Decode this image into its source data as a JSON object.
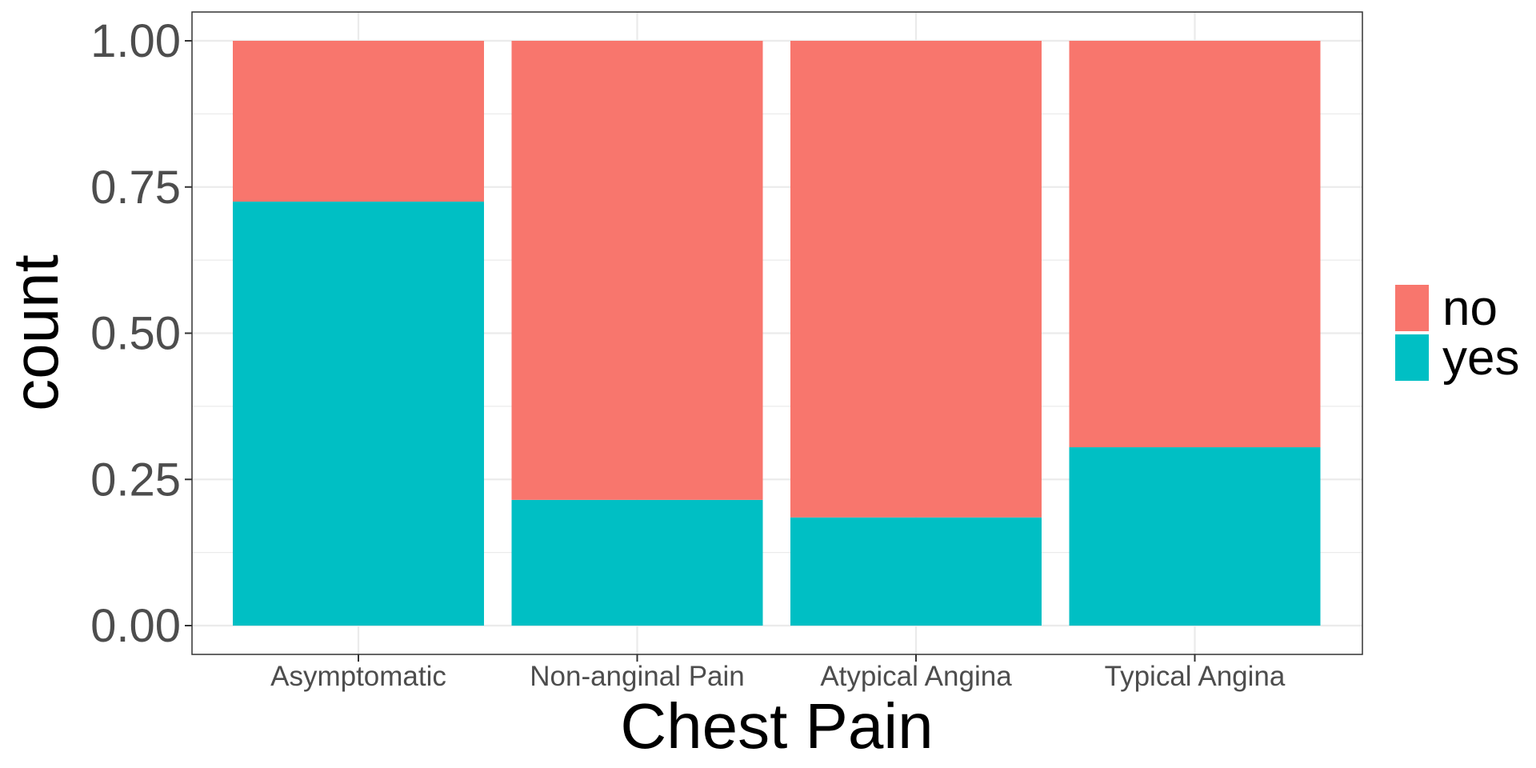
{
  "chart_data": {
    "type": "bar",
    "stacked": true,
    "position": "fill",
    "categories": [
      "Asymptomatic",
      "Non-anginal Pain",
      "Atypical Angina",
      "Typical Angina"
    ],
    "series": [
      {
        "name": "no",
        "color": "#F8766D",
        "values": [
          0.275,
          0.785,
          0.815,
          0.695
        ]
      },
      {
        "name": "yes",
        "color": "#00BFC4",
        "values": [
          0.725,
          0.215,
          0.185,
          0.305
        ]
      }
    ],
    "xlabel": "Chest Pain",
    "ylabel": "count",
    "ylim": [
      0,
      1
    ],
    "yticks": [
      "0.00",
      "0.25",
      "0.50",
      "0.75",
      "1.00"
    ],
    "grid": true,
    "legend_position": "right"
  }
}
